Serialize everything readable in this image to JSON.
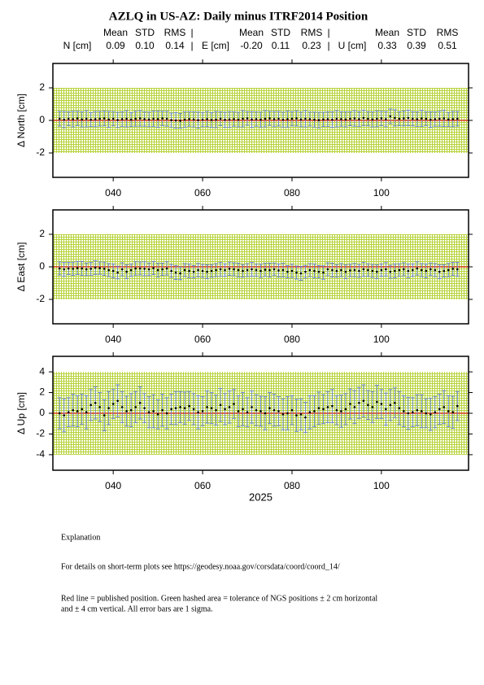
{
  "title": "AZLQ in US-AZ: Daily minus ITRF2014 Position",
  "stats": [
    {
      "label": "N [cm]",
      "headers": [
        "Mean",
        "STD",
        "RMS"
      ],
      "values": [
        "0.09",
        "0.10",
        "0.14"
      ]
    },
    {
      "label": "E [cm]",
      "headers": [
        "Mean",
        "STD",
        "RMS"
      ],
      "values": [
        "-0.20",
        "0.11",
        "0.23"
      ]
    },
    {
      "label": "U [cm]",
      "headers": [
        "Mean",
        "STD",
        "RMS"
      ],
      "values": [
        "0.33",
        "0.39",
        "0.51"
      ]
    }
  ],
  "chart_data": [
    {
      "type": "errorbar",
      "ylabel": "Δ North  [cm]",
      "x": [
        28,
        29,
        30,
        31,
        32,
        33,
        34,
        35,
        36,
        37,
        38,
        39,
        40,
        41,
        42,
        43,
        44,
        45,
        46,
        47,
        48,
        49,
        50,
        51,
        52,
        53,
        54,
        55,
        56,
        57,
        58,
        59,
        60,
        61,
        62,
        63,
        64,
        65,
        66,
        67,
        68,
        69,
        70,
        71,
        72,
        73,
        74,
        75,
        76,
        77,
        78,
        79,
        80,
        81,
        82,
        83,
        84,
        85,
        86,
        87,
        88,
        89,
        90,
        91,
        92,
        93,
        94,
        95,
        96,
        97,
        98,
        99,
        100,
        101,
        102,
        103,
        104,
        105,
        106,
        107,
        108,
        109,
        110,
        111,
        112,
        113,
        114,
        115,
        116,
        117
      ],
      "values": [
        0.1,
        0.05,
        0.1,
        0.08,
        0.12,
        0.06,
        0.1,
        0.05,
        0.08,
        0.1,
        0.12,
        0.06,
        0.1,
        0.03,
        0.08,
        0.1,
        0.05,
        0.1,
        0.12,
        0.08,
        0.06,
        0.1,
        0.08,
        0.12,
        0.1,
        0.02,
        0.0,
        -0.02,
        0.05,
        0.08,
        0.06,
        0.02,
        0.05,
        0.08,
        0.03,
        0.05,
        0.1,
        0.04,
        0.06,
        0.08,
        0.05,
        0.1,
        0.12,
        0.06,
        0.08,
        0.05,
        0.1,
        0.12,
        0.08,
        0.1,
        0.05,
        0.08,
        0.1,
        0.12,
        0.06,
        0.1,
        0.08,
        0.05,
        0.02,
        0.06,
        0.08,
        0.05,
        0.1,
        0.08,
        0.06,
        0.1,
        0.12,
        0.08,
        0.15,
        0.1,
        0.06,
        0.1,
        0.12,
        0.08,
        0.25,
        0.15,
        0.1,
        0.12,
        0.15,
        0.1,
        0.08,
        0.12,
        0.1,
        0.05,
        0.08,
        0.1,
        0.12,
        0.06,
        0.08,
        0.1
      ],
      "errors": [
        0.45,
        0.5,
        0.42,
        0.48,
        0.44,
        0.46,
        0.5,
        0.43,
        0.47,
        0.45,
        0.46,
        0.49,
        0.44,
        0.47,
        0.45,
        0.5,
        0.43,
        0.46,
        0.48,
        0.44,
        0.45,
        0.47,
        0.5,
        0.44,
        0.46,
        0.43,
        0.48,
        0.45,
        0.47,
        0.44,
        0.46,
        0.49,
        0.44,
        0.47,
        0.45,
        0.5,
        0.43,
        0.46,
        0.48,
        0.44,
        0.45,
        0.5,
        0.42,
        0.48,
        0.44,
        0.46,
        0.5,
        0.43,
        0.47,
        0.45,
        0.46,
        0.49,
        0.44,
        0.47,
        0.45,
        0.5,
        0.43,
        0.46,
        0.48,
        0.44,
        0.45,
        0.47,
        0.5,
        0.44,
        0.46,
        0.43,
        0.48,
        0.45,
        0.47,
        0.44,
        0.46,
        0.49,
        0.44,
        0.47,
        0.45,
        0.5,
        0.43,
        0.46,
        0.48,
        0.44,
        0.45,
        0.5,
        0.42,
        0.48,
        0.44,
        0.46,
        0.5,
        0.43,
        0.47,
        0.45
      ],
      "xlim": [
        26.5,
        119.5
      ],
      "xticks": [
        {
          "value": 40,
          "label": "040"
        },
        {
          "value": 60,
          "label": "060"
        },
        {
          "value": 80,
          "label": "080"
        },
        {
          "value": 100,
          "label": "100"
        }
      ],
      "ylim": [
        -3.5,
        3.5
      ],
      "yticks": [
        -2,
        0,
        2
      ],
      "band": [
        -2,
        2
      ],
      "reference": 0,
      "color": "#5a78e0",
      "point_color": "#000000",
      "band_color": "#b6d33a",
      "reference_color": "#e0201b"
    },
    {
      "type": "errorbar",
      "ylabel": "Δ East  [cm]",
      "x": [
        28,
        29,
        30,
        31,
        32,
        33,
        34,
        35,
        36,
        37,
        38,
        39,
        40,
        41,
        42,
        43,
        44,
        45,
        46,
        47,
        48,
        49,
        50,
        51,
        52,
        53,
        54,
        55,
        56,
        57,
        58,
        59,
        60,
        61,
        62,
        63,
        64,
        65,
        66,
        67,
        68,
        69,
        70,
        71,
        72,
        73,
        74,
        75,
        76,
        77,
        78,
        79,
        80,
        81,
        82,
        83,
        84,
        85,
        86,
        87,
        88,
        89,
        90,
        91,
        92,
        93,
        94,
        95,
        96,
        97,
        98,
        99,
        100,
        101,
        102,
        103,
        104,
        105,
        106,
        107,
        108,
        109,
        110,
        111,
        112,
        113,
        114,
        115,
        116,
        117
      ],
      "values": [
        -0.1,
        -0.15,
        -0.1,
        -0.12,
        -0.08,
        -0.1,
        -0.15,
        -0.12,
        -0.05,
        -0.08,
        -0.12,
        -0.2,
        -0.25,
        -0.35,
        -0.15,
        -0.3,
        -0.2,
        -0.1,
        -0.1,
        -0.12,
        -0.15,
        -0.08,
        -0.2,
        -0.15,
        -0.1,
        -0.25,
        -0.35,
        -0.4,
        -0.2,
        -0.25,
        -0.3,
        -0.2,
        -0.25,
        -0.3,
        -0.25,
        -0.2,
        -0.15,
        -0.2,
        -0.12,
        -0.15,
        -0.2,
        -0.25,
        -0.2,
        -0.15,
        -0.2,
        -0.25,
        -0.18,
        -0.2,
        -0.15,
        -0.22,
        -0.2,
        -0.3,
        -0.25,
        -0.35,
        -0.4,
        -0.3,
        -0.2,
        -0.25,
        -0.3,
        -0.35,
        -0.15,
        -0.2,
        -0.25,
        -0.2,
        -0.3,
        -0.22,
        -0.2,
        -0.25,
        -0.15,
        -0.2,
        -0.25,
        -0.3,
        -0.2,
        -0.15,
        -0.3,
        -0.25,
        -0.2,
        -0.15,
        -0.25,
        -0.2,
        -0.1,
        -0.2,
        -0.25,
        -0.15,
        -0.2,
        -0.3,
        -0.25,
        -0.2,
        -0.12,
        -0.15
      ],
      "errors": [
        0.4,
        0.42,
        0.38,
        0.41,
        0.4,
        0.43,
        0.39,
        0.4,
        0.42,
        0.38,
        0.41,
        0.4,
        0.43,
        0.39,
        0.4,
        0.42,
        0.38,
        0.41,
        0.4,
        0.43,
        0.39,
        0.4,
        0.42,
        0.38,
        0.41,
        0.4,
        0.43,
        0.39,
        0.4,
        0.42,
        0.38,
        0.41,
        0.4,
        0.43,
        0.39,
        0.4,
        0.42,
        0.38,
        0.41,
        0.4,
        0.43,
        0.39,
        0.4,
        0.42,
        0.38,
        0.41,
        0.4,
        0.43,
        0.39,
        0.4,
        0.42,
        0.38,
        0.41,
        0.4,
        0.43,
        0.39,
        0.4,
        0.42,
        0.38,
        0.41,
        0.4,
        0.43,
        0.39,
        0.4,
        0.42,
        0.38,
        0.41,
        0.4,
        0.43,
        0.39,
        0.4,
        0.42,
        0.38,
        0.41,
        0.4,
        0.43,
        0.39,
        0.4,
        0.42,
        0.38,
        0.41,
        0.4,
        0.43,
        0.39,
        0.4,
        0.42,
        0.38,
        0.41,
        0.4,
        0.43
      ],
      "xlim": [
        26.5,
        119.5
      ],
      "xticks": [
        {
          "value": 40,
          "label": "040"
        },
        {
          "value": 60,
          "label": "060"
        },
        {
          "value": 80,
          "label": "080"
        },
        {
          "value": 100,
          "label": "100"
        }
      ],
      "ylim": [
        -3.5,
        3.5
      ],
      "yticks": [
        -2,
        0,
        2
      ],
      "band": [
        -2,
        2
      ],
      "reference": 0,
      "color": "#5a78e0",
      "point_color": "#000000",
      "band_color": "#b6d33a",
      "reference_color": "#e0201b"
    },
    {
      "type": "errorbar",
      "ylabel": "Δ Up  [cm]",
      "xlabel": "2025",
      "x": [
        28,
        29,
        30,
        31,
        32,
        33,
        34,
        35,
        36,
        37,
        38,
        39,
        40,
        41,
        42,
        43,
        44,
        45,
        46,
        47,
        48,
        49,
        50,
        51,
        52,
        53,
        54,
        55,
        56,
        57,
        58,
        59,
        60,
        61,
        62,
        63,
        64,
        65,
        66,
        67,
        68,
        69,
        70,
        71,
        72,
        73,
        74,
        75,
        76,
        77,
        78,
        79,
        80,
        81,
        82,
        83,
        84,
        85,
        86,
        87,
        88,
        89,
        90,
        91,
        92,
        93,
        94,
        95,
        96,
        97,
        98,
        99,
        100,
        101,
        102,
        103,
        104,
        105,
        106,
        107,
        108,
        109,
        110,
        111,
        112,
        113,
        114,
        115,
        116,
        117
      ],
      "values": [
        0.0,
        -0.2,
        0.1,
        0.3,
        0.2,
        0.4,
        0.1,
        0.8,
        1.0,
        0.6,
        -0.2,
        0.5,
        0.9,
        1.2,
        0.6,
        0.2,
        0.3,
        0.6,
        1.0,
        0.5,
        0.1,
        0.2,
        -0.1,
        0.3,
        0.0,
        0.4,
        0.5,
        0.6,
        0.5,
        0.7,
        0.4,
        0.1,
        0.2,
        0.6,
        0.5,
        0.3,
        0.8,
        0.4,
        0.6,
        0.9,
        0.2,
        0.4,
        0.1,
        0.6,
        0.3,
        0.2,
        0.0,
        0.5,
        0.3,
        0.2,
        -0.1,
        0.0,
        0.3,
        -0.2,
        -0.1,
        -0.4,
        0.1,
        0.2,
        0.5,
        0.4,
        0.6,
        0.7,
        0.3,
        0.2,
        0.4,
        0.9,
        0.6,
        1.0,
        1.2,
        0.8,
        0.6,
        1.1,
        0.9,
        0.4,
        0.8,
        1.0,
        0.5,
        0.2,
        0.0,
        0.1,
        0.3,
        0.2,
        0.0,
        -0.1,
        0.1,
        0.4,
        0.6,
        0.2,
        0.1,
        0.7
      ],
      "errors": [
        1.5,
        1.6,
        1.4,
        1.55,
        1.5,
        1.45,
        1.6,
        1.5,
        1.55,
        1.4,
        1.5,
        1.6,
        1.4,
        1.55,
        1.5,
        1.45,
        1.6,
        1.5,
        1.55,
        1.4,
        1.5,
        1.6,
        1.4,
        1.55,
        1.5,
        1.45,
        1.6,
        1.5,
        1.55,
        1.4,
        1.5,
        1.6,
        1.4,
        1.55,
        1.5,
        1.45,
        1.6,
        1.5,
        1.55,
        1.4,
        1.5,
        1.6,
        1.4,
        1.55,
        1.5,
        1.45,
        1.6,
        1.5,
        1.55,
        1.4,
        1.5,
        1.6,
        1.4,
        1.55,
        1.5,
        1.45,
        1.6,
        1.5,
        1.55,
        1.4,
        1.5,
        1.6,
        1.4,
        1.55,
        1.5,
        1.45,
        1.6,
        1.5,
        1.55,
        1.4,
        1.5,
        1.6,
        1.4,
        1.55,
        1.5,
        1.45,
        1.6,
        1.5,
        1.55,
        1.4,
        1.5,
        1.6,
        1.4,
        1.55,
        1.5,
        1.45,
        1.6,
        1.5,
        1.55,
        1.4
      ],
      "xlim": [
        26.5,
        119.5
      ],
      "xticks": [
        {
          "value": 40,
          "label": "040"
        },
        {
          "value": 60,
          "label": "060"
        },
        {
          "value": 80,
          "label": "080"
        },
        {
          "value": 100,
          "label": "100"
        }
      ],
      "ylim": [
        -5.5,
        5.5
      ],
      "yticks": [
        -4,
        -2,
        0,
        2,
        4
      ],
      "band": [
        -4,
        4
      ],
      "reference": 0,
      "color": "#5a78e0",
      "point_color": "#000000",
      "band_color": "#b6d33a",
      "reference_color": "#e0201b"
    }
  ],
  "explanation": {
    "heading": "Explanation",
    "lines": [
      "For details on short-term plots see https://geodesy.noaa.gov/corsdata/coord/coord_14/",
      "Red line = published position.  Green hashed area = tolerance of NGS positions ± 2 cm horizontal",
      "and ± 4 cm vertical.  All error bars are 1 sigma."
    ]
  }
}
